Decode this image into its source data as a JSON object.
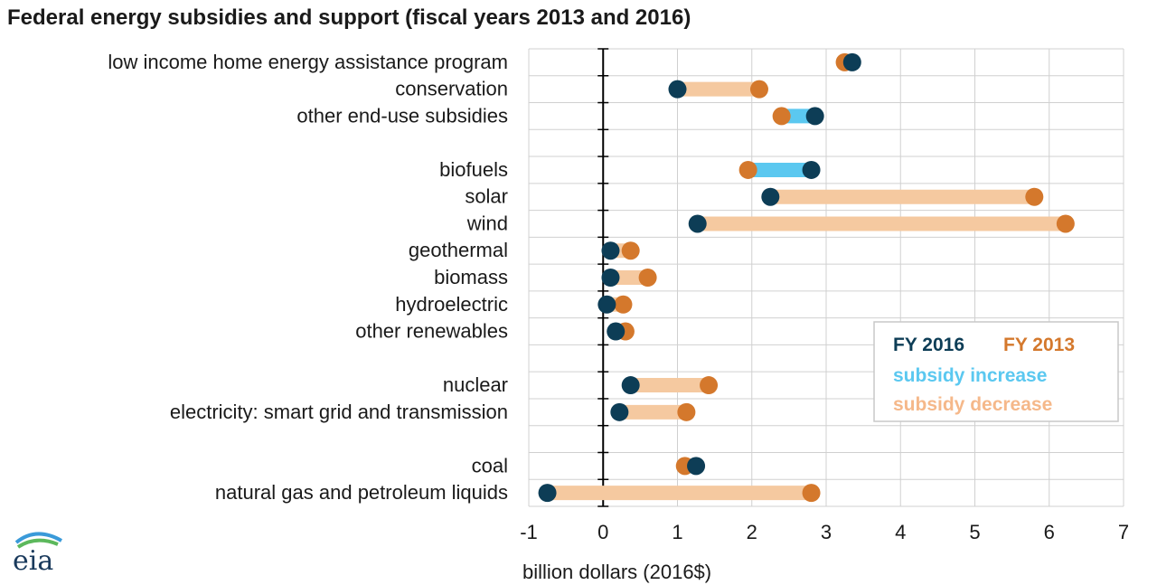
{
  "title": "Federal energy subsidies and support (fiscal years 2013 and 2016)",
  "logo_text": "eia",
  "colors": {
    "fy2016": "#0d3d56",
    "fy2013": "#d4782c",
    "increase": "#5bc8f0",
    "decrease": "#f5c9a0",
    "grid": "#d0d0d0",
    "axis": "#000000"
  },
  "legend": {
    "fy2016_label": "FY 2016",
    "fy2013_label": "FY 2013",
    "increase_label": "subsidy increase",
    "decrease_label": "subsidy decrease",
    "placement": "lower-right"
  },
  "chart_data": {
    "type": "dumbbell",
    "title": "Federal energy subsidies and support (fiscal years 2013 and 2016)",
    "xlabel": "billion dollars (2016$)",
    "ylabel": "",
    "xlim": [
      -1,
      7
    ],
    "xticks": [
      -1,
      0,
      1,
      2,
      3,
      4,
      5,
      6,
      7
    ],
    "grid": true,
    "series_names": [
      "FY 2016",
      "FY 2013"
    ],
    "categories": [
      {
        "label": "low income home energy assistance program",
        "fy2016": 3.35,
        "fy2013": 3.25
      },
      {
        "label": "conservation",
        "fy2016": 1.0,
        "fy2013": 2.1
      },
      {
        "label": "other end-use subsidies",
        "fy2016": 2.85,
        "fy2013": 2.4
      },
      {
        "label": "",
        "fy2016": null,
        "fy2013": null
      },
      {
        "label": "biofuels",
        "fy2016": 2.8,
        "fy2013": 1.95
      },
      {
        "label": "solar",
        "fy2016": 2.25,
        "fy2013": 5.8
      },
      {
        "label": "wind",
        "fy2016": 1.27,
        "fy2013": 6.22
      },
      {
        "label": "geothermal",
        "fy2016": 0.1,
        "fy2013": 0.37
      },
      {
        "label": "biomass",
        "fy2016": 0.1,
        "fy2013": 0.6
      },
      {
        "label": "hydroelectric",
        "fy2016": 0.05,
        "fy2013": 0.27
      },
      {
        "label": "other renewables",
        "fy2016": 0.17,
        "fy2013": 0.3
      },
      {
        "label": "",
        "fy2016": null,
        "fy2013": null
      },
      {
        "label": "nuclear",
        "fy2016": 0.37,
        "fy2013": 1.42
      },
      {
        "label": "electricity: smart grid and transmission",
        "fy2016": 0.22,
        "fy2013": 1.12
      },
      {
        "label": "",
        "fy2016": null,
        "fy2013": null
      },
      {
        "label": "coal",
        "fy2016": 1.25,
        "fy2013": 1.1
      },
      {
        "label": "natural gas and petroleum liquids",
        "fy2016": -0.75,
        "fy2013": 2.8
      }
    ]
  }
}
